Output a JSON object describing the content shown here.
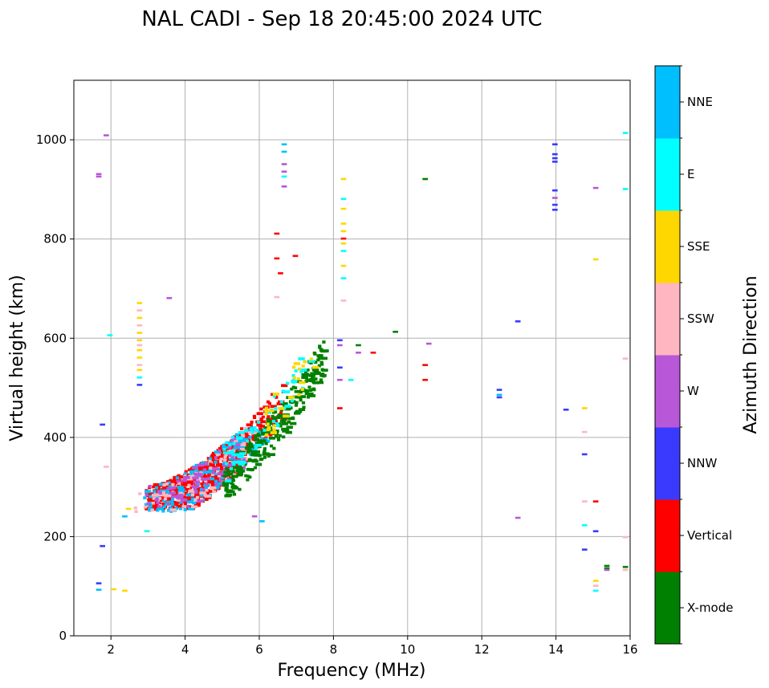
{
  "chart_data": {
    "type": "scatter",
    "title": "NAL CADI - Sep 18 20:45:00 2024 UTC",
    "xlabel": "Frequency (MHz)",
    "ylabel": "Virtual height (km)",
    "xlim": [
      1,
      16
    ],
    "ylim": [
      0,
      1120
    ],
    "xticks": [
      2,
      4,
      6,
      8,
      10,
      12,
      14,
      16
    ],
    "yticks": [
      0,
      200,
      400,
      600,
      800,
      1000
    ],
    "grid": true,
    "colorbar": {
      "label": "Azimuth Direction",
      "categories": [
        {
          "name": "X-mode",
          "color": "#008000"
        },
        {
          "name": "Vertical",
          "color": "#ff0000"
        },
        {
          "name": "NNW",
          "color": "#3a3aff"
        },
        {
          "name": "W",
          "color": "#b857d8"
        },
        {
          "name": "SSW",
          "color": "#ffb6c1"
        },
        {
          "name": "SSE",
          "color": "#ffd700"
        },
        {
          "name": "E",
          "color": "#00ffff"
        },
        {
          "name": "NNE",
          "color": "#00bfff"
        }
      ]
    },
    "clusters": [
      {
        "name": "Vertical",
        "x_range": [
          2.9,
          5.6
        ],
        "y_range": [
          255,
          400
        ],
        "count": 520,
        "seed": 11
      },
      {
        "name": "Vertical",
        "x_range": [
          5.2,
          6.6
        ],
        "y_range": [
          330,
          620
        ],
        "count": 110,
        "seed": 12
      },
      {
        "name": "NNE",
        "x_range": [
          2.8,
          6.2
        ],
        "y_range": [
          250,
          420
        ],
        "count": 150,
        "seed": 13
      },
      {
        "name": "SSW",
        "x_range": [
          2.6,
          6.0
        ],
        "y_range": [
          250,
          420
        ],
        "count": 90,
        "seed": 14
      },
      {
        "name": "W",
        "x_range": [
          2.8,
          6.0
        ],
        "y_range": [
          260,
          400
        ],
        "count": 70,
        "seed": 15
      },
      {
        "name": "X-mode",
        "x_range": [
          5.0,
          7.7
        ],
        "y_range": [
          280,
          600
        ],
        "count": 260,
        "seed": 16
      },
      {
        "name": "E",
        "x_range": [
          5.0,
          7.5
        ],
        "y_range": [
          300,
          560
        ],
        "count": 60,
        "seed": 17
      },
      {
        "name": "SSE",
        "x_range": [
          6.0,
          7.5
        ],
        "y_range": [
          350,
          560
        ],
        "count": 30,
        "seed": 18
      }
    ],
    "points": [
      {
        "x": 8.2,
        "y": 920,
        "series": "SSE"
      },
      {
        "x": 8.2,
        "y": 880,
        "series": "E"
      },
      {
        "x": 8.2,
        "y": 860,
        "series": "SSE"
      },
      {
        "x": 8.2,
        "y": 830,
        "series": "SSE"
      },
      {
        "x": 8.2,
        "y": 815,
        "series": "SSE"
      },
      {
        "x": 8.2,
        "y": 800,
        "series": "Vertical"
      },
      {
        "x": 8.2,
        "y": 790,
        "series": "SSE"
      },
      {
        "x": 8.2,
        "y": 775,
        "series": "E"
      },
      {
        "x": 8.2,
        "y": 745,
        "series": "SSE"
      },
      {
        "x": 8.2,
        "y": 720,
        "series": "E"
      },
      {
        "x": 8.2,
        "y": 675,
        "series": "SSW"
      },
      {
        "x": 6.6,
        "y": 990,
        "series": "NNE"
      },
      {
        "x": 6.6,
        "y": 975,
        "series": "NNE"
      },
      {
        "x": 6.6,
        "y": 950,
        "series": "W"
      },
      {
        "x": 6.6,
        "y": 935,
        "series": "W"
      },
      {
        "x": 6.6,
        "y": 925,
        "series": "E"
      },
      {
        "x": 6.6,
        "y": 905,
        "series": "W"
      },
      {
        "x": 6.4,
        "y": 810,
        "series": "Vertical"
      },
      {
        "x": 6.4,
        "y": 760,
        "series": "Vertical"
      },
      {
        "x": 6.5,
        "y": 730,
        "series": "Vertical"
      },
      {
        "x": 6.9,
        "y": 765,
        "series": "Vertical"
      },
      {
        "x": 6.4,
        "y": 682,
        "series": "SSW"
      },
      {
        "x": 2.7,
        "y": 670,
        "series": "SSE"
      },
      {
        "x": 2.7,
        "y": 655,
        "series": "SSW"
      },
      {
        "x": 2.7,
        "y": 640,
        "series": "SSE"
      },
      {
        "x": 2.7,
        "y": 625,
        "series": "SSW"
      },
      {
        "x": 2.7,
        "y": 610,
        "series": "SSE"
      },
      {
        "x": 2.7,
        "y": 595,
        "series": "SSE"
      },
      {
        "x": 2.7,
        "y": 585,
        "series": "SSW"
      },
      {
        "x": 2.7,
        "y": 575,
        "series": "SSE"
      },
      {
        "x": 2.7,
        "y": 560,
        "series": "SSE"
      },
      {
        "x": 2.7,
        "y": 545,
        "series": "SSW"
      },
      {
        "x": 2.7,
        "y": 535,
        "series": "SSE"
      },
      {
        "x": 2.7,
        "y": 520,
        "series": "E"
      },
      {
        "x": 2.7,
        "y": 505,
        "series": "NNW"
      },
      {
        "x": 3.5,
        "y": 680,
        "series": "W"
      },
      {
        "x": 1.6,
        "y": 930,
        "series": "W"
      },
      {
        "x": 1.6,
        "y": 925,
        "series": "W"
      },
      {
        "x": 1.8,
        "y": 1008,
        "series": "W"
      },
      {
        "x": 1.9,
        "y": 605,
        "series": "E"
      },
      {
        "x": 1.7,
        "y": 425,
        "series": "NNW"
      },
      {
        "x": 1.8,
        "y": 340,
        "series": "SSW"
      },
      {
        "x": 1.7,
        "y": 180,
        "series": "NNW"
      },
      {
        "x": 1.6,
        "y": 105,
        "series": "NNW"
      },
      {
        "x": 1.6,
        "y": 92,
        "series": "NNE"
      },
      {
        "x": 2.0,
        "y": 93,
        "series": "SSE"
      },
      {
        "x": 2.3,
        "y": 90,
        "series": "SSE"
      },
      {
        "x": 2.3,
        "y": 240,
        "series": "NNE"
      },
      {
        "x": 2.4,
        "y": 255,
        "series": "SSE"
      },
      {
        "x": 2.9,
        "y": 210,
        "series": "E"
      },
      {
        "x": 5.8,
        "y": 240,
        "series": "W"
      },
      {
        "x": 6.0,
        "y": 230,
        "series": "NNE"
      },
      {
        "x": 8.1,
        "y": 595,
        "series": "NNW"
      },
      {
        "x": 8.1,
        "y": 585,
        "series": "W"
      },
      {
        "x": 8.1,
        "y": 540,
        "series": "NNW"
      },
      {
        "x": 8.1,
        "y": 515,
        "series": "W"
      },
      {
        "x": 8.1,
        "y": 458,
        "series": "Vertical"
      },
      {
        "x": 8.4,
        "y": 515,
        "series": "E"
      },
      {
        "x": 8.6,
        "y": 585,
        "series": "X-mode"
      },
      {
        "x": 8.6,
        "y": 570,
        "series": "W"
      },
      {
        "x": 9.0,
        "y": 570,
        "series": "Vertical"
      },
      {
        "x": 9.6,
        "y": 612,
        "series": "X-mode"
      },
      {
        "x": 10.4,
        "y": 920,
        "series": "X-mode"
      },
      {
        "x": 10.4,
        "y": 545,
        "series": "Vertical"
      },
      {
        "x": 10.4,
        "y": 515,
        "series": "Vertical"
      },
      {
        "x": 10.5,
        "y": 588,
        "series": "W"
      },
      {
        "x": 12.4,
        "y": 495,
        "series": "NNW"
      },
      {
        "x": 12.4,
        "y": 485,
        "series": "NNE"
      },
      {
        "x": 12.4,
        "y": 480,
        "series": "NNW"
      },
      {
        "x": 12.9,
        "y": 633,
        "series": "NNW"
      },
      {
        "x": 12.9,
        "y": 237,
        "series": "W"
      },
      {
        "x": 13.9,
        "y": 990,
        "series": "NNW"
      },
      {
        "x": 13.9,
        "y": 970,
        "series": "NNW"
      },
      {
        "x": 13.9,
        "y": 962,
        "series": "NNW"
      },
      {
        "x": 13.9,
        "y": 955,
        "series": "NNW"
      },
      {
        "x": 13.9,
        "y": 897,
        "series": "NNW"
      },
      {
        "x": 13.9,
        "y": 882,
        "series": "W"
      },
      {
        "x": 13.9,
        "y": 868,
        "series": "NNW"
      },
      {
        "x": 13.9,
        "y": 858,
        "series": "NNW"
      },
      {
        "x": 14.2,
        "y": 455,
        "series": "NNW"
      },
      {
        "x": 14.7,
        "y": 458,
        "series": "SSE"
      },
      {
        "x": 14.7,
        "y": 410,
        "series": "SSW"
      },
      {
        "x": 14.7,
        "y": 365,
        "series": "NNW"
      },
      {
        "x": 14.7,
        "y": 270,
        "series": "SSW"
      },
      {
        "x": 14.7,
        "y": 222,
        "series": "E"
      },
      {
        "x": 14.7,
        "y": 173,
        "series": "NNW"
      },
      {
        "x": 15.0,
        "y": 902,
        "series": "W"
      },
      {
        "x": 15.0,
        "y": 758,
        "series": "SSE"
      },
      {
        "x": 15.0,
        "y": 270,
        "series": "Vertical"
      },
      {
        "x": 15.0,
        "y": 210,
        "series": "NNW"
      },
      {
        "x": 15.0,
        "y": 110,
        "series": "SSE"
      },
      {
        "x": 15.0,
        "y": 100,
        "series": "SSW"
      },
      {
        "x": 15.0,
        "y": 90,
        "series": "E"
      },
      {
        "x": 15.8,
        "y": 1013,
        "series": "E"
      },
      {
        "x": 15.8,
        "y": 900,
        "series": "E"
      },
      {
        "x": 15.8,
        "y": 558,
        "series": "SSW"
      },
      {
        "x": 15.8,
        "y": 198,
        "series": "SSW"
      },
      {
        "x": 15.3,
        "y": 140,
        "series": "X-mode"
      },
      {
        "x": 15.3,
        "y": 135,
        "series": "X-mode"
      },
      {
        "x": 15.3,
        "y": 132,
        "series": "W"
      },
      {
        "x": 15.8,
        "y": 138,
        "series": "X-mode"
      },
      {
        "x": 15.8,
        "y": 132,
        "series": "SSW"
      }
    ]
  }
}
